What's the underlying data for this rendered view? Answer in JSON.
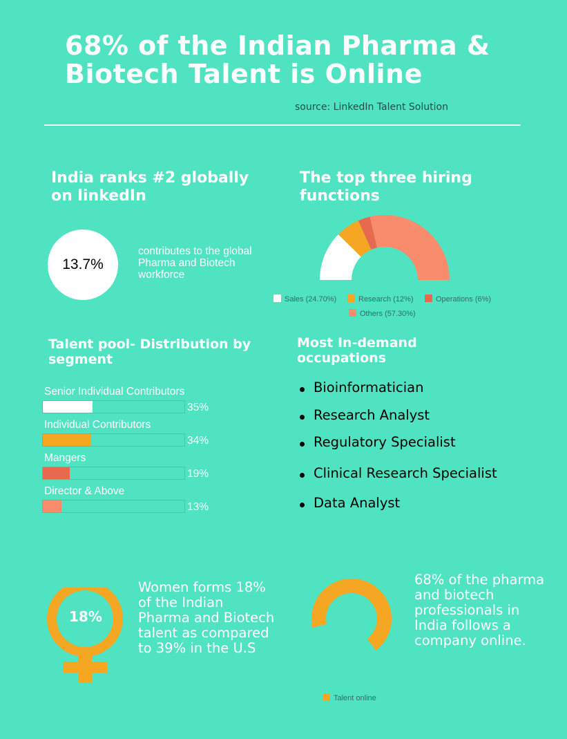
{
  "title": "68% of the Indian Pharma & Biotech Talent is Online",
  "source": "source: LinkedIn Talent Solution",
  "rank": {
    "heading": "India ranks #2 globally on linkedIn",
    "stat": "13.7%",
    "description": "contributes to the global Pharma and Biotech workforce"
  },
  "hiring": {
    "heading": "The top three hiring functions"
  },
  "talent_pool": {
    "heading": "Talent pool- Distribution by segment"
  },
  "occupations": {
    "heading": "Most In-demand occupations",
    "items": [
      "Bioinformatician",
      "Research Analyst",
      "Regulatory Specialist",
      "Clinical Research Specialist",
      "Data Analyst"
    ]
  },
  "women": {
    "value": "18%",
    "text": "Women forms 18% of the Indian Pharma and Biotech talent as compared to 39% in the U.S"
  },
  "online": {
    "text": "68% of the pharma and biotech professionals in India follows a company online."
  },
  "colors": {
    "background": "#50e3c2",
    "white": "#ffffff",
    "orange": "#f5a623",
    "red": "#e86a4e",
    "salmon": "#fa8c6e"
  },
  "chart_data": [
    {
      "type": "pie",
      "subtype": "semi-donut",
      "series": [
        {
          "name": "Sales",
          "label": "Sales (24.70%)",
          "value": 24.7,
          "color": "#ffffff"
        },
        {
          "name": "Research",
          "label": "Research (12%)",
          "value": 12,
          "color": "#f5a623"
        },
        {
          "name": "Operations",
          "label": "Operations (6%)",
          "value": 6,
          "color": "#e86a4e"
        },
        {
          "name": "Others",
          "label": "Others (57.30%)",
          "value": 57.3,
          "color": "#fa8c6e"
        }
      ],
      "legend": "bottom"
    },
    {
      "type": "bar",
      "orientation": "horizontal",
      "categories": [
        "Senior Individual Contributors",
        "Individual Contributors",
        "Mangers",
        "Director & Above"
      ],
      "values": [
        35,
        34,
        19,
        13
      ],
      "labels": [
        "35%",
        "34%",
        "19%",
        "13%"
      ],
      "colors": [
        "#ffffff",
        "#f5a623",
        "#e86a4e",
        "#fa8c6e"
      ],
      "xlim": [
        0,
        100
      ]
    },
    {
      "type": "pie",
      "subtype": "donut",
      "series": [
        {
          "name": "Talent online",
          "value": 68,
          "color": "#f5a623"
        }
      ],
      "legend": "bottom"
    }
  ]
}
